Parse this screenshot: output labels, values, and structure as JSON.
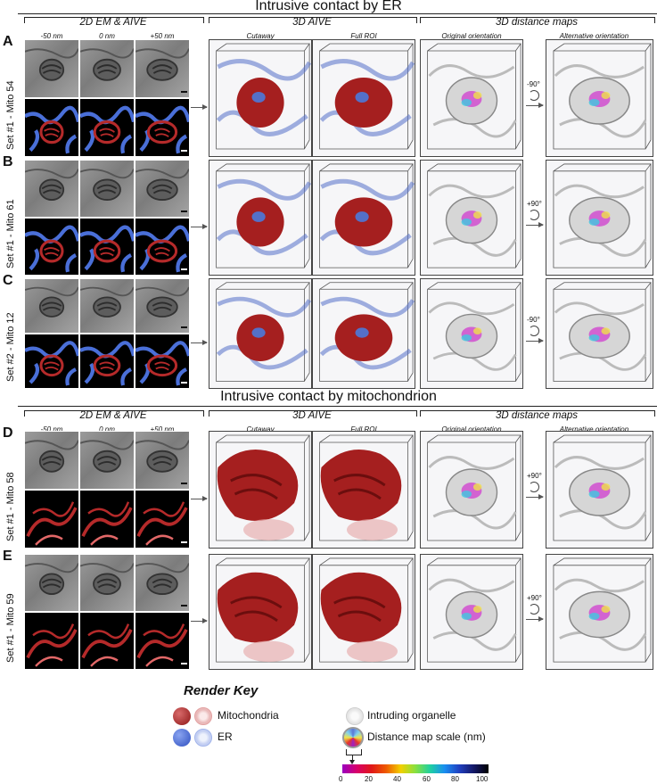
{
  "figure": {
    "section1_title": "Intrusive contact by ER",
    "section2_title": "Intrusive contact by mitochondrion",
    "col_headers": {
      "em": "2D EM & AIVE",
      "aive3d": "3D AIVE",
      "dist": "3D distance maps"
    },
    "sub_headers": {
      "minus50": "-50 nm",
      "zero": "0 nm",
      "plus50": "+50 nm",
      "cutaway": "Cutaway",
      "fullroi": "Full ROI",
      "orig": "Original orientation",
      "alt": "Alternative orientation"
    },
    "rows": [
      {
        "letter": "A",
        "label": "Set #1 - Mito 54",
        "rotation": "-90°",
        "contact": "er"
      },
      {
        "letter": "B",
        "label": "Set #1 - Mito 61",
        "rotation": "+90°",
        "contact": "er"
      },
      {
        "letter": "C",
        "label": "Set #2 - Mito 12",
        "rotation": "-90°",
        "contact": "er"
      },
      {
        "letter": "D",
        "label": "Set #1 - Mito 58",
        "rotation": "+90°",
        "contact": "mito"
      },
      {
        "letter": "E",
        "label": "Set #1 - Mito 59",
        "rotation": "+90°",
        "contact": "mito"
      }
    ]
  },
  "render_key": {
    "title": "Render Key",
    "mitochondria": "Mitochondria",
    "er": "ER",
    "intruding": "Intruding organelle",
    "distance_map": "Distance map scale (nm)",
    "ticks": [
      "0",
      "20",
      "40",
      "60",
      "80",
      "100"
    ],
    "colors": {
      "mito": "#b52a2a",
      "er": "#4a6fd8",
      "intruding": "#dcdcdc"
    }
  }
}
